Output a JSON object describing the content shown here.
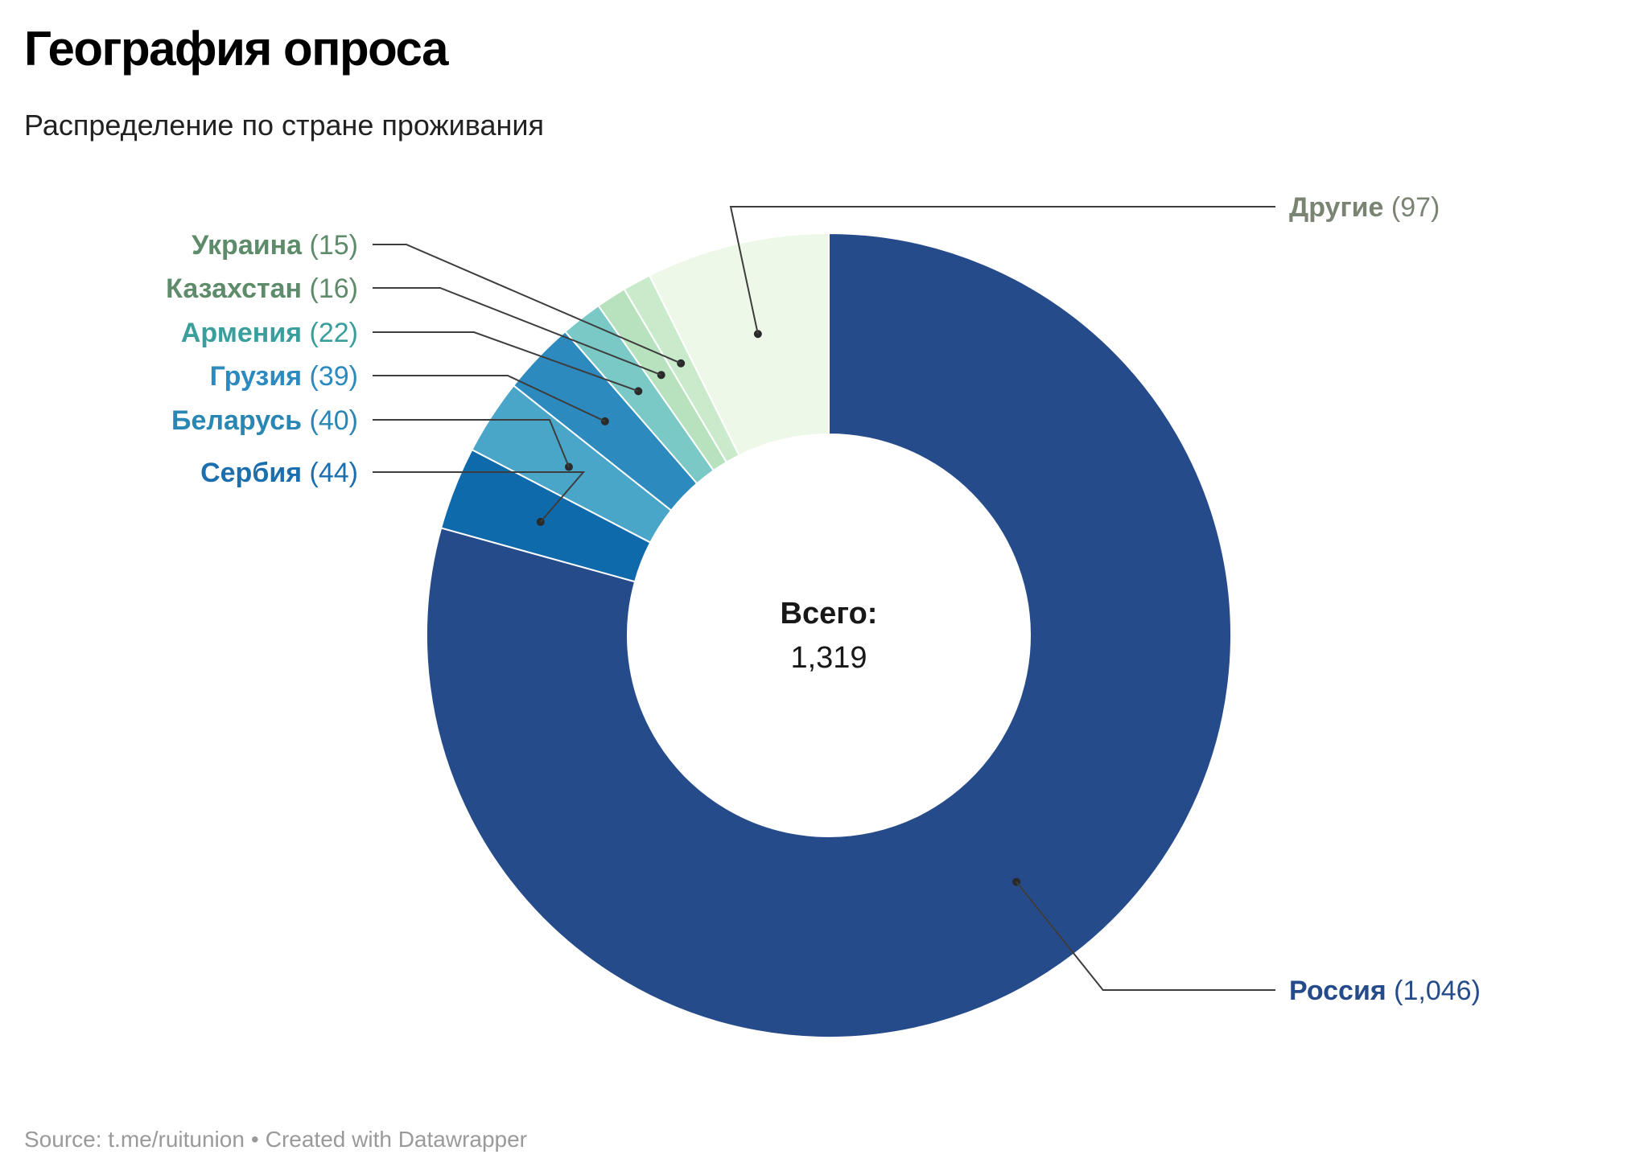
{
  "chart_data": {
    "type": "donut",
    "title": "География опроса",
    "subtitle": "Распределение по стране проживания",
    "center_label": "Всего:",
    "center_value": "1,319",
    "slices": [
      {
        "name": "Россия",
        "value": 1046,
        "value_label": "1,046",
        "color": "#264b8b",
        "label_color": "#264b8b",
        "label_side": "right"
      },
      {
        "name": "Сербия",
        "value": 44,
        "value_label": "44",
        "color": "#0f6aac",
        "label_color": "#1c6fae",
        "label_side": "left"
      },
      {
        "name": "Беларусь",
        "value": 40,
        "value_label": "40",
        "color": "#4aa6c9",
        "label_color": "#2a87b3",
        "label_side": "left"
      },
      {
        "name": "Грузия",
        "value": 39,
        "value_label": "39",
        "color": "#2c8abf",
        "label_color": "#2c8abf",
        "label_side": "left"
      },
      {
        "name": "Армения",
        "value": 22,
        "value_label": "22",
        "color": "#7ac9c6",
        "label_color": "#3a9f9c",
        "label_side": "left"
      },
      {
        "name": "Казахстан",
        "value": 16,
        "value_label": "16",
        "color": "#b7e2bd",
        "label_color": "#5e8c6a",
        "label_side": "left"
      },
      {
        "name": "Украина",
        "value": 15,
        "value_label": "15",
        "color": "#c9ebcc",
        "label_color": "#5e8c6a",
        "label_side": "left"
      },
      {
        "name": "Другие",
        "value": 97,
        "value_label": "97",
        "color": "#eef8e8",
        "label_color": "#7a8473",
        "label_side": "right"
      }
    ]
  },
  "footer": {
    "source": "Source: t.me/ruitunion",
    "separator": "•",
    "credit": "Created with Datawrapper"
  }
}
